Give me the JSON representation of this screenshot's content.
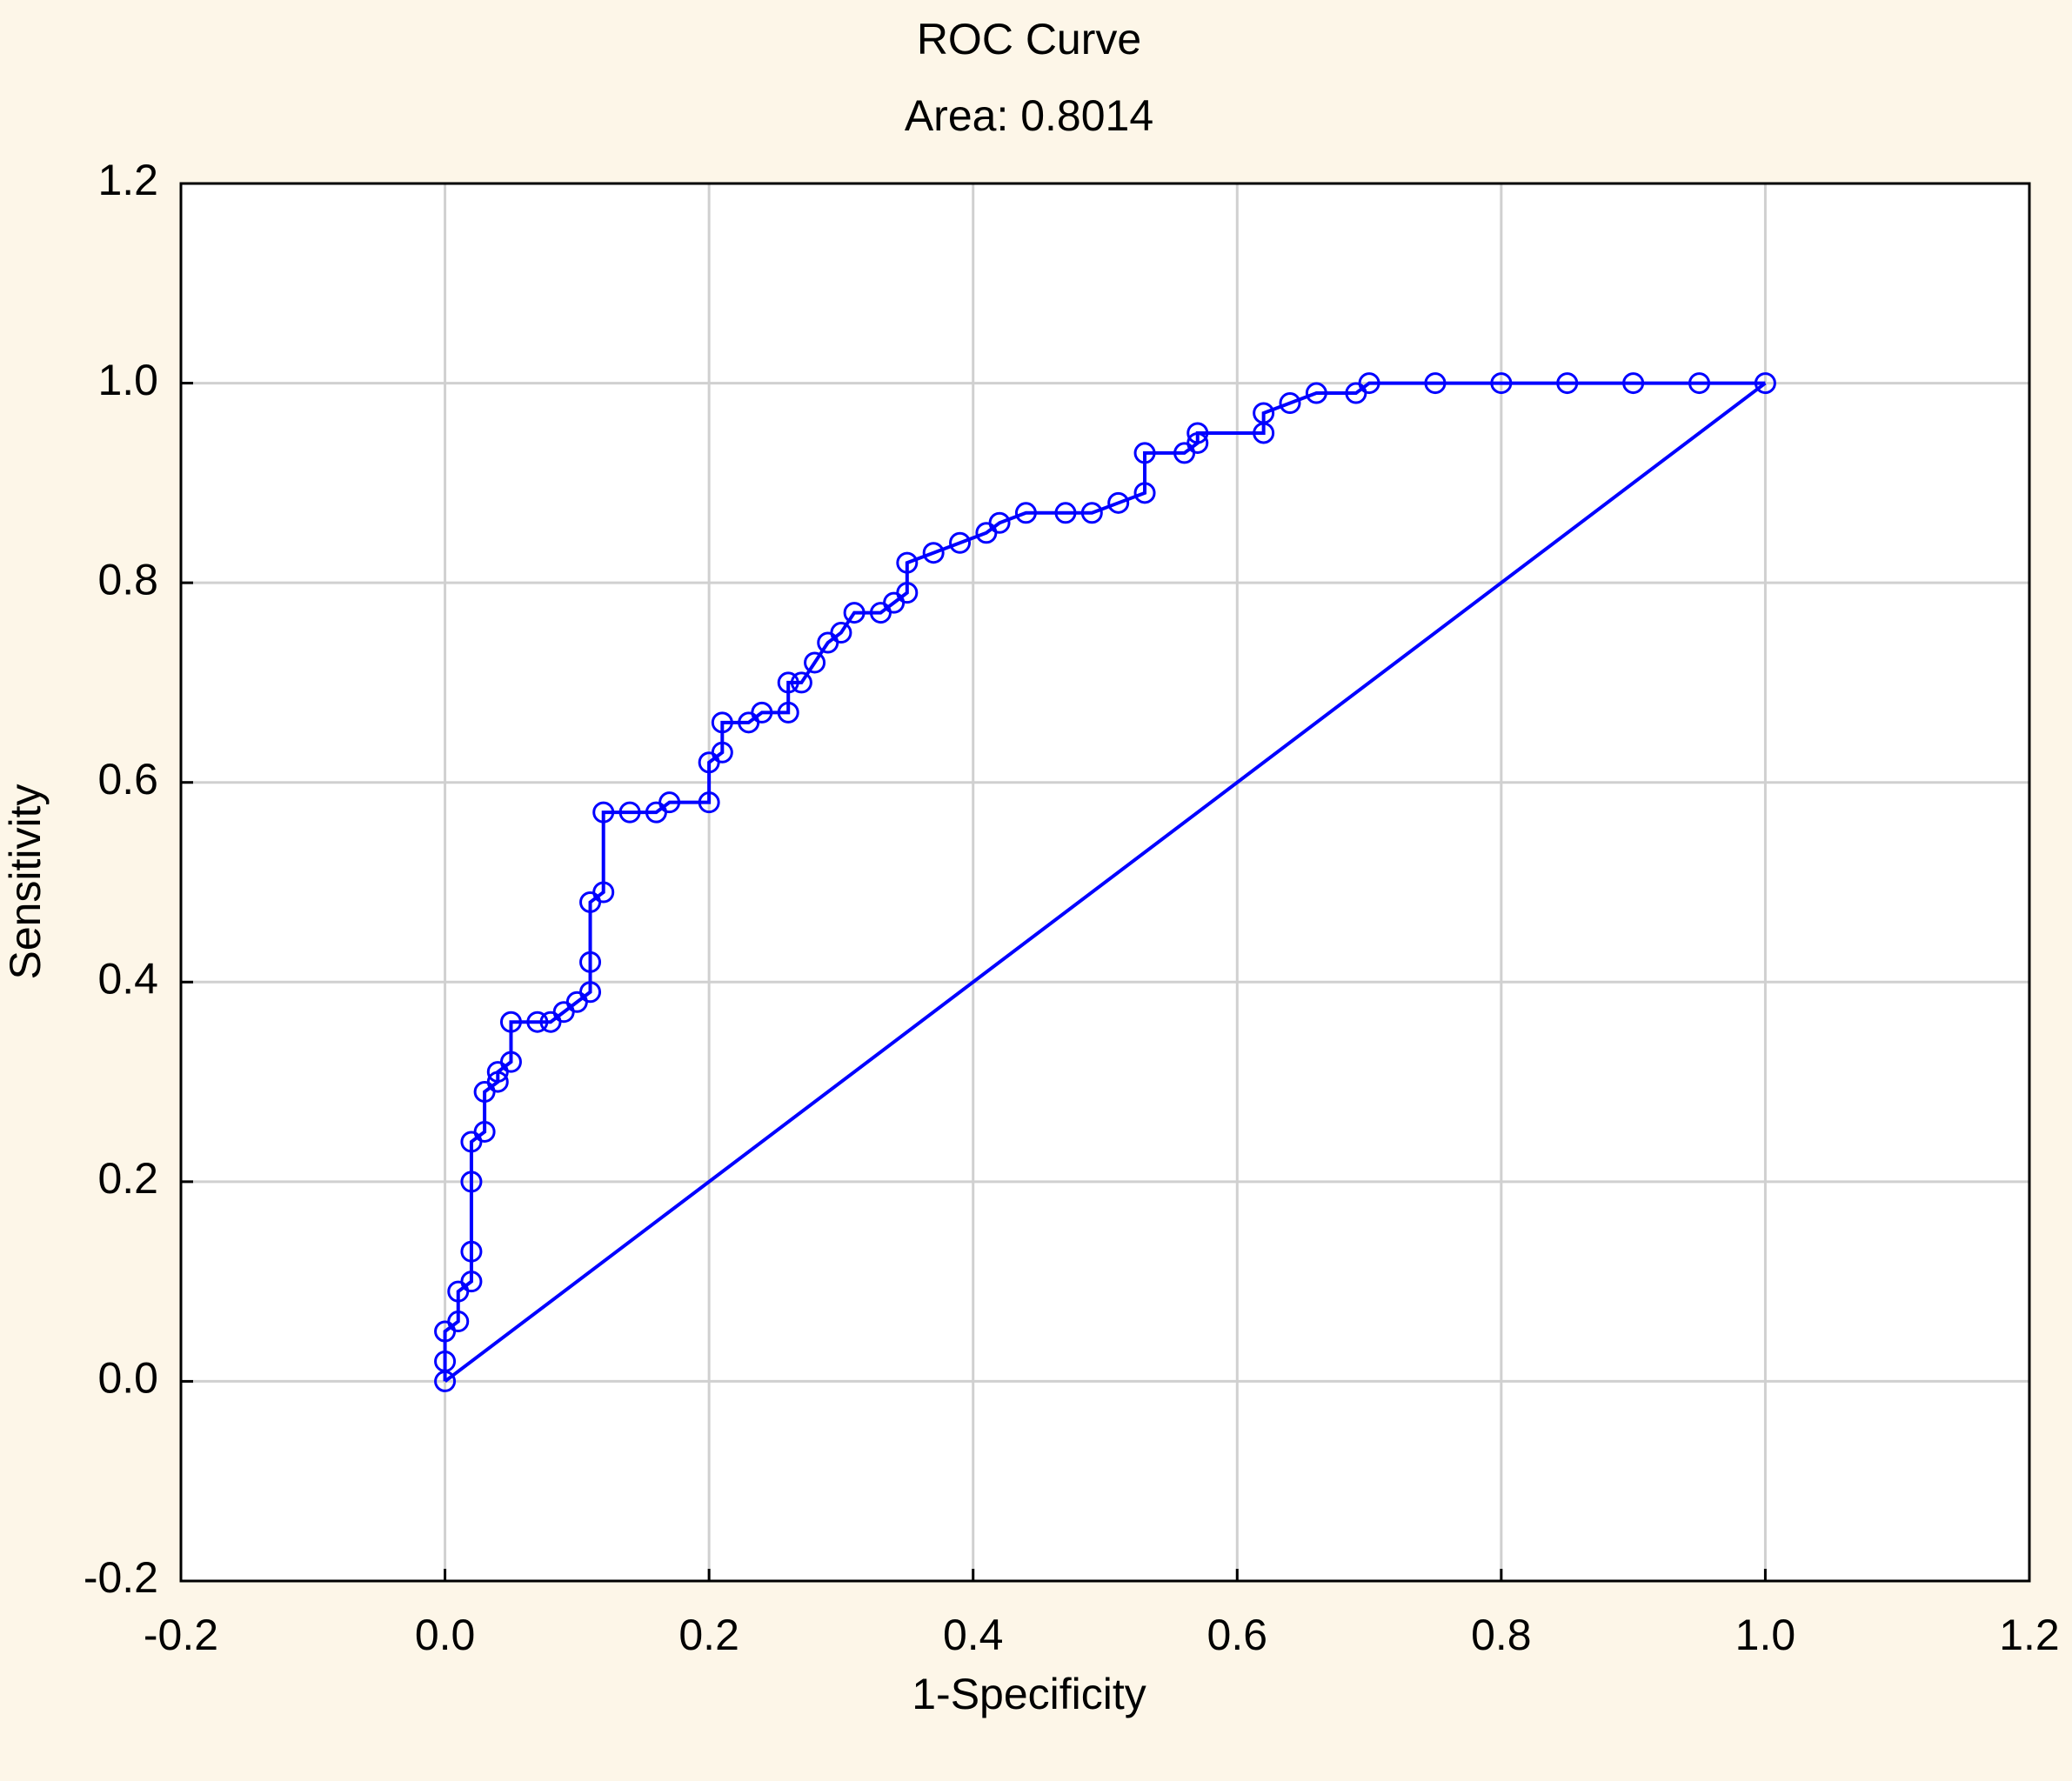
{
  "chart_data": {
    "type": "line",
    "title": "ROC Curve",
    "subtitle": "Area: 0.8014",
    "xlabel": "1-Specificity",
    "ylabel": "Sensitivity",
    "xlim": [
      -0.2,
      1.2
    ],
    "ylim": [
      -0.2,
      1.2
    ],
    "xticks": [
      -0.2,
      {
        "value": 0,
        "label": "0.0"
      },
      0.2,
      0.4,
      0.6,
      0.8,
      {
        "value": 1,
        "label": "1.0"
      },
      1.2
    ],
    "yticks": [
      -0.2,
      {
        "value": 0,
        "label": "0.0"
      },
      0.2,
      0.4,
      0.6,
      0.8,
      {
        "value": 1,
        "label": "1.0"
      },
      1.2
    ],
    "grid": true,
    "series": [
      {
        "color": "#0000ff",
        "markers": true,
        "x": [
          0,
          0,
          0,
          0.01,
          0.01,
          0.02,
          0.02,
          0.02,
          0.02,
          0.03,
          0.03,
          0.04,
          0.04,
          0.05,
          0.05,
          0.07,
          0.08,
          0.09,
          0.1,
          0.11,
          0.11,
          0.11,
          0.12,
          0.12,
          0.14,
          0.16,
          0.17,
          0.2,
          0.2,
          0.21,
          0.21,
          0.23,
          0.24,
          0.26,
          0.26,
          0.27,
          0.28,
          0.29,
          0.3,
          0.31,
          0.33,
          0.34,
          0.35,
          0.35,
          0.37,
          0.39,
          0.41,
          0.42,
          0.44,
          0.47,
          0.49,
          0.51,
          0.53,
          0.53,
          0.56,
          0.57,
          0.57,
          0.62,
          0.62,
          0.64,
          0.66,
          0.69,
          0.7,
          0.75,
          0.8,
          0.85,
          0.9,
          0.95,
          1
        ],
        "values": [
          0,
          0.02,
          0.05,
          0.06,
          0.09,
          0.1,
          0.13,
          0.2,
          0.24,
          0.25,
          0.29,
          0.3,
          0.31,
          0.32,
          0.36,
          0.36,
          0.36,
          0.37,
          0.38,
          0.39,
          0.42,
          0.48,
          0.49,
          0.57,
          0.57,
          0.57,
          0.58,
          0.58,
          0.62,
          0.63,
          0.66,
          0.66,
          0.67,
          0.67,
          0.7,
          0.7,
          0.72,
          0.74,
          0.75,
          0.77,
          0.77,
          0.78,
          0.79,
          0.82,
          0.83,
          0.84,
          0.85,
          0.86,
          0.87,
          0.87,
          0.87,
          0.88,
          0.89,
          0.93,
          0.93,
          0.94,
          0.95,
          0.95,
          0.97,
          0.98,
          0.99,
          0.99,
          1,
          1,
          1,
          1,
          1,
          1,
          1
        ]
      },
      {
        "color": "#0000ff",
        "markers": false,
        "x": [
          0,
          1
        ],
        "values": [
          0,
          1
        ]
      }
    ]
  }
}
